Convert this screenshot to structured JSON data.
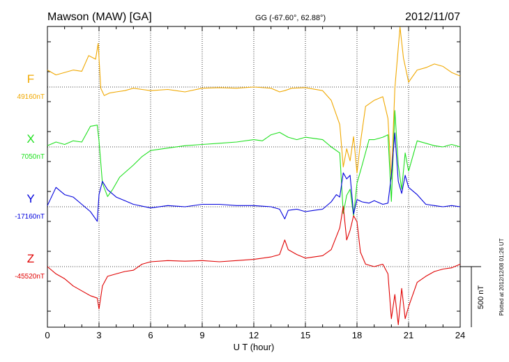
{
  "header": {
    "station": "Mawson (MAW)  [GA]",
    "coords": "GG (-67.60°,  62.88°)",
    "date": "2012/11/07"
  },
  "side_note": "Plotted at 2012/12/08 01:26 UT",
  "chart_data": {
    "type": "line",
    "xlabel": "U T (hour)",
    "xlim": [
      0,
      24
    ],
    "xticks": [
      "0",
      "3",
      "6",
      "9",
      "12",
      "15",
      "18",
      "21",
      "24"
    ],
    "scale_label": "500 nT",
    "colors": {
      "F": "#f0a800",
      "X": "#1ee01e",
      "Y": "#0000dd",
      "Z": "#e00000"
    },
    "series": [
      {
        "name": "F",
        "baseline_label": "49160nT",
        "baseline": 49160,
        "x": [
          0,
          0.5,
          1.0,
          1.5,
          2.0,
          2.4,
          2.8,
          2.95,
          3.1,
          3.3,
          3.6,
          4.0,
          4.5,
          5.0,
          5.5,
          6.0,
          7.0,
          8.0,
          9.0,
          10.0,
          11.0,
          12.0,
          13.0,
          13.5,
          13.8,
          14.2,
          15.0,
          16.0,
          16.5,
          17.0,
          17.2,
          17.4,
          17.6,
          17.8,
          18.0,
          18.2,
          18.5,
          19.0,
          19.5,
          19.8,
          20.0,
          20.2,
          20.5,
          20.7,
          21.0,
          21.5,
          22.0,
          22.5,
          23.0,
          23.5,
          24.0
        ],
        "y": [
          49300,
          49260,
          49280,
          49300,
          49290,
          49420,
          49390,
          49520,
          49150,
          49090,
          49110,
          49120,
          49130,
          49150,
          49140,
          49130,
          49140,
          49120,
          49150,
          49155,
          49150,
          49160,
          49150,
          49120,
          49130,
          49150,
          49155,
          49130,
          49050,
          48850,
          48500,
          48650,
          48550,
          48750,
          48450,
          48700,
          49000,
          49050,
          49080,
          48900,
          48400,
          49150,
          49700,
          49400,
          49200,
          49300,
          49320,
          49350,
          49330,
          49280,
          49250
        ]
      },
      {
        "name": "X",
        "baseline_label": "7050nT",
        "baseline": 7050,
        "x": [
          0,
          0.5,
          1.0,
          1.5,
          2.0,
          2.5,
          2.9,
          3.0,
          3.2,
          3.5,
          3.8,
          4.2,
          5.0,
          5.5,
          6.0,
          7.0,
          8.0,
          9.0,
          10.0,
          11.0,
          12.0,
          12.5,
          13.0,
          13.5,
          14.0,
          14.5,
          15.0,
          15.5,
          16.0,
          16.5,
          17.0,
          17.2,
          17.4,
          17.6,
          17.8,
          18.0,
          18.3,
          18.7,
          19.0,
          19.5,
          19.8,
          20.0,
          20.2,
          20.4,
          20.6,
          20.8,
          21.0,
          21.5,
          22.0,
          22.5,
          23.0,
          23.5,
          24.0
        ],
        "y": [
          7060,
          7090,
          7070,
          7100,
          7090,
          7220,
          7230,
          7100,
          6750,
          6640,
          6700,
          6800,
          6900,
          6970,
          7020,
          7040,
          7060,
          7070,
          7080,
          7090,
          7110,
          7100,
          7150,
          7170,
          7130,
          7110,
          7130,
          7120,
          7110,
          7050,
          7000,
          6500,
          6650,
          6700,
          6480,
          6750,
          6900,
          7110,
          7110,
          7130,
          7150,
          6600,
          7350,
          6900,
          6700,
          7000,
          6850,
          7100,
          7080,
          7060,
          7050,
          7070,
          7050
        ]
      },
      {
        "name": "Y",
        "baseline_label": "-17160nT",
        "baseline": -17160,
        "x": [
          0,
          0.5,
          1.0,
          1.5,
          2.0,
          2.5,
          2.9,
          3.0,
          3.2,
          3.5,
          4.0,
          4.5,
          5.0,
          6.0,
          7.0,
          8.0,
          9.0,
          10.0,
          11.0,
          12.0,
          13.0,
          13.5,
          13.8,
          14.0,
          14.5,
          15.0,
          15.5,
          16.0,
          16.5,
          16.8,
          17.0,
          17.2,
          17.4,
          17.6,
          17.8,
          18.0,
          18.3,
          18.7,
          19.0,
          19.5,
          19.8,
          20.0,
          20.2,
          20.4,
          20.6,
          20.8,
          21.0,
          21.5,
          22.0,
          22.5,
          23.0,
          23.5,
          24.0
        ],
        "y": [
          -17150,
          -17000,
          -17060,
          -17080,
          -17140,
          -17200,
          -17280,
          -17060,
          -16950,
          -17020,
          -17080,
          -17110,
          -17140,
          -17170,
          -17150,
          -17160,
          -17140,
          -17140,
          -17150,
          -17150,
          -17160,
          -17180,
          -17260,
          -17190,
          -17180,
          -17200,
          -17190,
          -17180,
          -17120,
          -17060,
          -17080,
          -16880,
          -16930,
          -16900,
          -17220,
          -17100,
          -17120,
          -17130,
          -17110,
          -17140,
          -17130,
          -16900,
          -16550,
          -16950,
          -17050,
          -16900,
          -17000,
          -17060,
          -17140,
          -17150,
          -17160,
          -17150,
          -17160
        ]
      },
      {
        "name": "Z",
        "baseline_label": "-45520nT",
        "baseline": -45520,
        "x": [
          0,
          0.5,
          1.0,
          1.5,
          2.0,
          2.5,
          2.9,
          3.0,
          3.2,
          3.5,
          4.0,
          4.5,
          5.0,
          5.5,
          6.0,
          7.0,
          8.0,
          9.0,
          10.0,
          11.0,
          12.0,
          13.0,
          13.5,
          13.8,
          14.0,
          14.5,
          15.0,
          15.5,
          16.0,
          16.5,
          17.0,
          17.2,
          17.4,
          17.6,
          17.8,
          18.0,
          18.2,
          18.5,
          19.0,
          19.5,
          19.8,
          20.0,
          20.2,
          20.4,
          20.6,
          20.8,
          21.0,
          21.5,
          22.0,
          22.5,
          23.0,
          23.5,
          24.0
        ],
        "y": [
          -45520,
          -45580,
          -45620,
          -45680,
          -45720,
          -45760,
          -45780,
          -45870,
          -45680,
          -45600,
          -45580,
          -45560,
          -45550,
          -45500,
          -45480,
          -45470,
          -45475,
          -45470,
          -45480,
          -45470,
          -45460,
          -45440,
          -45420,
          -45300,
          -45380,
          -45420,
          -45450,
          -45440,
          -45430,
          -45380,
          -45200,
          -45020,
          -45300,
          -45220,
          -45100,
          -45150,
          -45400,
          -45500,
          -45520,
          -45500,
          -45580,
          -45950,
          -45750,
          -46000,
          -45700,
          -45950,
          -45850,
          -45650,
          -45600,
          -45560,
          -45540,
          -45530,
          -45500
        ]
      }
    ]
  }
}
